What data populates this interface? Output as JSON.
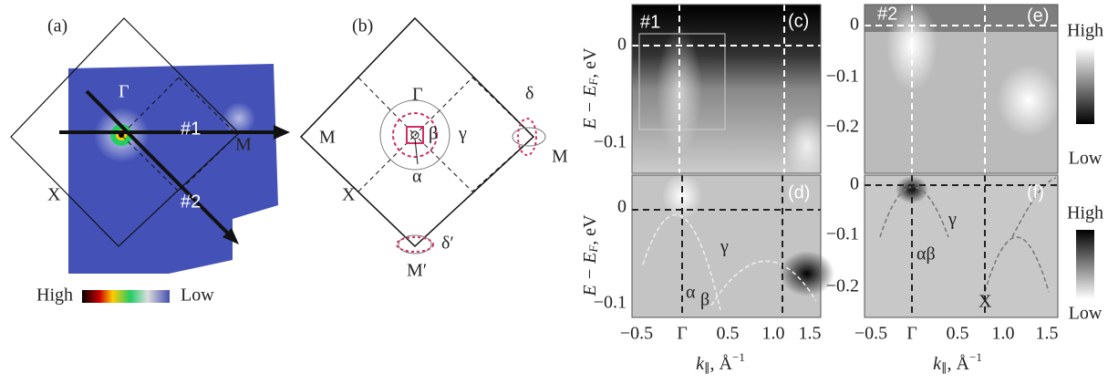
{
  "panel_a": {
    "label": "(a)",
    "gamma": "Γ",
    "cut1": "#1",
    "m": "M",
    "x": "X",
    "cut2": "#2",
    "high": "High",
    "low": "Low"
  },
  "panel_b": {
    "label": "(b)",
    "gamma": "Γ",
    "beta": "β",
    "gamma_band": "γ",
    "alpha": "α",
    "m_left": "M",
    "delta": "δ",
    "m_right": "M",
    "x": "X",
    "delta_prime": "δ′",
    "m_prime": "M′"
  },
  "panel_c": {
    "label": "(c)",
    "cut": "#1",
    "yticks": [
      "0",
      "−0.1"
    ]
  },
  "panel_d": {
    "label": "(d)",
    "yticks": [
      "0",
      "−0.1"
    ],
    "xticks": [
      "−0.5",
      "Γ",
      "0.5",
      "1.0",
      "1.5"
    ],
    "alpha": "α",
    "beta": "β",
    "gamma": "γ"
  },
  "panel_e": {
    "label": "(e)",
    "cut": "#2",
    "yticks": [
      "0",
      "−0.1",
      "−0.2"
    ],
    "high": "High",
    "low": "Low"
  },
  "panel_f": {
    "label": "(f)",
    "yticks": [
      "0",
      "−0.1",
      "−0.2"
    ],
    "xticks": [
      "−0.5",
      "Γ",
      "0.5",
      "1.0",
      "1.5"
    ],
    "alpha_beta": "αβ",
    "gamma": "γ",
    "x": "X",
    "high": "High",
    "low": "Low"
  },
  "y_label": [
    "E − E",
    "F",
    ", eV"
  ],
  "x_label": [
    "k",
    "∥",
    ", Å",
    "−1"
  ]
}
